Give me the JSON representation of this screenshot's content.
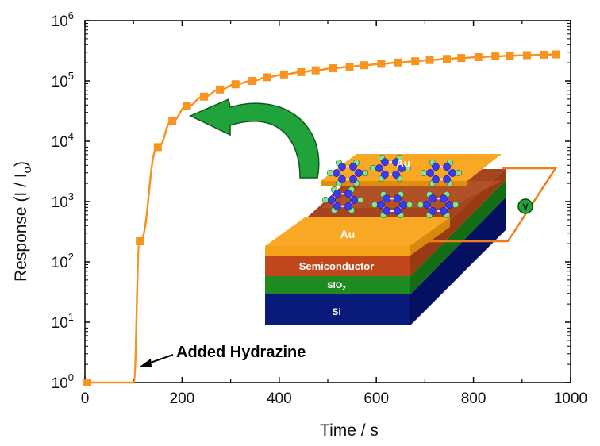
{
  "chart_data": {
    "type": "line",
    "xlabel": "Time / s",
    "ylabel": "Response (I / Io)",
    "ylabel_main": "Response (I / I",
    "ylabel_sub": "o",
    "ylabel_end": ")",
    "xlim": [
      0,
      1000
    ],
    "ylim": [
      1,
      1000000
    ],
    "yscale": "log",
    "x_ticks": [
      "0",
      "200",
      "400",
      "600",
      "800",
      "1000"
    ],
    "y_tick_exponents": [
      "0",
      "1",
      "2",
      "3",
      "4",
      "5",
      "6"
    ],
    "series": [
      {
        "color": "#f7931e",
        "x": [
          5,
          95,
          113,
          150,
          180,
          210,
          245,
          278,
          310,
          345,
          375,
          410,
          445,
          475,
          510,
          545,
          575,
          610,
          645,
          680,
          710,
          745,
          775,
          810,
          845,
          875,
          910,
          945,
          970
        ],
        "y": [
          1,
          1,
          220,
          8000,
          22000,
          38000,
          55000,
          72000,
          88000,
          100000,
          115000,
          128000,
          140000,
          150000,
          162000,
          172000,
          182000,
          192000,
          202000,
          212000,
          222000,
          232000,
          240000,
          248000,
          255000,
          262000,
          268000,
          272000,
          276000
        ]
      }
    ],
    "annotation": "Added Hydrazine",
    "inset": {
      "labels": {
        "au_top": "Au",
        "au_front": "Au",
        "semiconductor": "Semiconductor",
        "sio2_main": "SiO",
        "sio2_sub": "2",
        "si": "Si",
        "meter": "V"
      },
      "colors": {
        "au": "#f9a825",
        "semiconductor": "#c0471b",
        "sio2": "#1f8a1f",
        "si": "#0a1a7a",
        "molecule_node": "#3a3af0",
        "molecule_h": "#8be08b",
        "arrow": "#1fa33a",
        "circuit": "#f07d1a"
      }
    },
    "legend": "none",
    "grid": false
  }
}
